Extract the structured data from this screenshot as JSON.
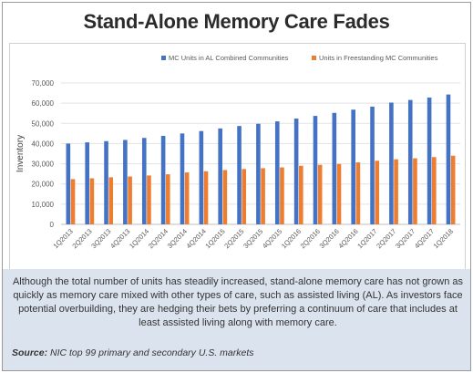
{
  "title": "Stand-Alone Memory Care Fades",
  "description": "Although the total number of units has steadily increased, stand-alone memory care has not grown as quickly as memory care mixed with other types of care, such as assisted living (AL). As investors face potential overbuilding, they are hedging their bets by preferring a continuum of care that includes at least assisted living along with memory care.",
  "source": {
    "label": "Source:",
    "text": "NIC top 99 primary and secondary U.S. markets"
  },
  "colors": {
    "series_al": "#4472c4",
    "series_freestanding": "#ed7d31"
  },
  "chart_data": {
    "type": "bar",
    "ylabel": "Inventory",
    "ylim": [
      0,
      70000
    ],
    "yticks": [
      "0",
      "10,000",
      "20,000",
      "30,000",
      "40,000",
      "50,000",
      "60,000",
      "70,000"
    ],
    "grid": true,
    "legend_position": "top-right",
    "categories": [
      "1Q2013",
      "2Q2013",
      "3Q2013",
      "4Q2013",
      "1Q2014",
      "2Q2014",
      "3Q2014",
      "4Q2014",
      "1Q2015",
      "2Q2015",
      "3Q2015",
      "4Q2015",
      "1Q2016",
      "2Q2016",
      "3Q2016",
      "4Q2016",
      "1Q2017",
      "2Q2017",
      "3Q2017",
      "4Q2017",
      "1Q2018"
    ],
    "series": [
      {
        "name": "MC Units in AL Combined Communities",
        "values": [
          40000,
          40600,
          41200,
          41800,
          42800,
          43800,
          45000,
          46200,
          47500,
          48700,
          49800,
          51000,
          52400,
          53700,
          55200,
          56800,
          58300,
          60300,
          61600,
          62800,
          64300
        ]
      },
      {
        "name": "Units in Freestanding MC Communities",
        "values": [
          22400,
          22800,
          23300,
          23700,
          24200,
          24800,
          25700,
          26300,
          26900,
          27400,
          27800,
          28200,
          29000,
          29500,
          29900,
          30700,
          31500,
          32200,
          32700,
          33300,
          34000
        ]
      }
    ]
  }
}
